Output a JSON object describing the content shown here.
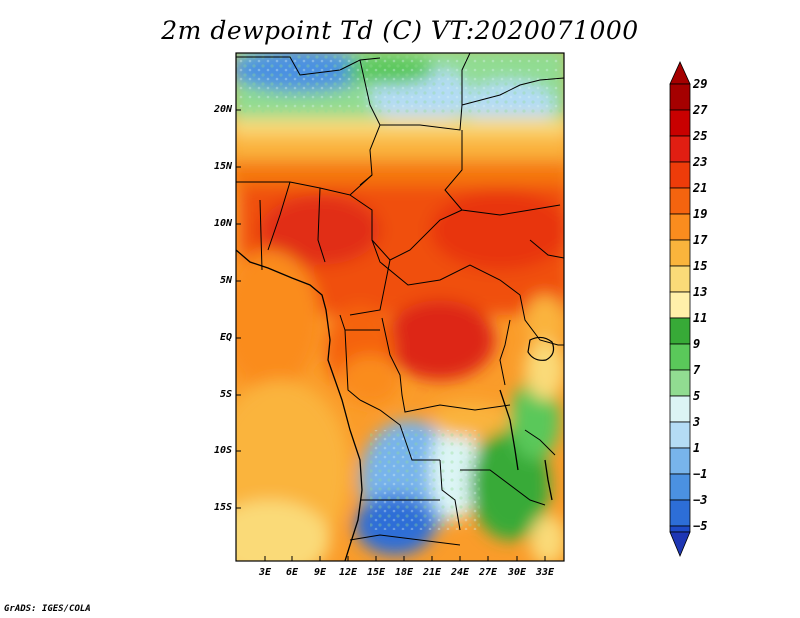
{
  "title": "2m dewpoint Td (C) VT:2020071000",
  "credit": "GrADS: IGES/COLA",
  "map": {
    "variable": "2m dewpoint",
    "units": "C",
    "valid_time": "2020071000",
    "lat_labels": [
      "20N",
      "15N",
      "10N",
      "5N",
      "EQ",
      "5S",
      "10S",
      "15S"
    ],
    "lon_labels": [
      "3E",
      "6E",
      "9E",
      "12E",
      "15E",
      "18E",
      "21E",
      "24E",
      "27E",
      "30E",
      "33E"
    ]
  },
  "colorbar": {
    "labels": [
      "29",
      "27",
      "25",
      "23",
      "21",
      "19",
      "17",
      "15",
      "13",
      "11",
      "9",
      "7",
      "5",
      "3",
      "1",
      "−1",
      "−3",
      "−5"
    ],
    "colors": [
      "#a50000",
      "#c80000",
      "#e11e12",
      "#ee3c0a",
      "#f5640f",
      "#fa8c1e",
      "#fab43c",
      "#fada78",
      "#fff0aa",
      "#37aa37",
      "#5ac85a",
      "#91dc91",
      "#dcf5f5",
      "#b4dcf5",
      "#78b4eb",
      "#4b91e1",
      "#2d6ed7",
      "#1e4bc8",
      "#1e37b4"
    ],
    "min_color": "#1e37b4",
    "max_color": "#a50000"
  }
}
